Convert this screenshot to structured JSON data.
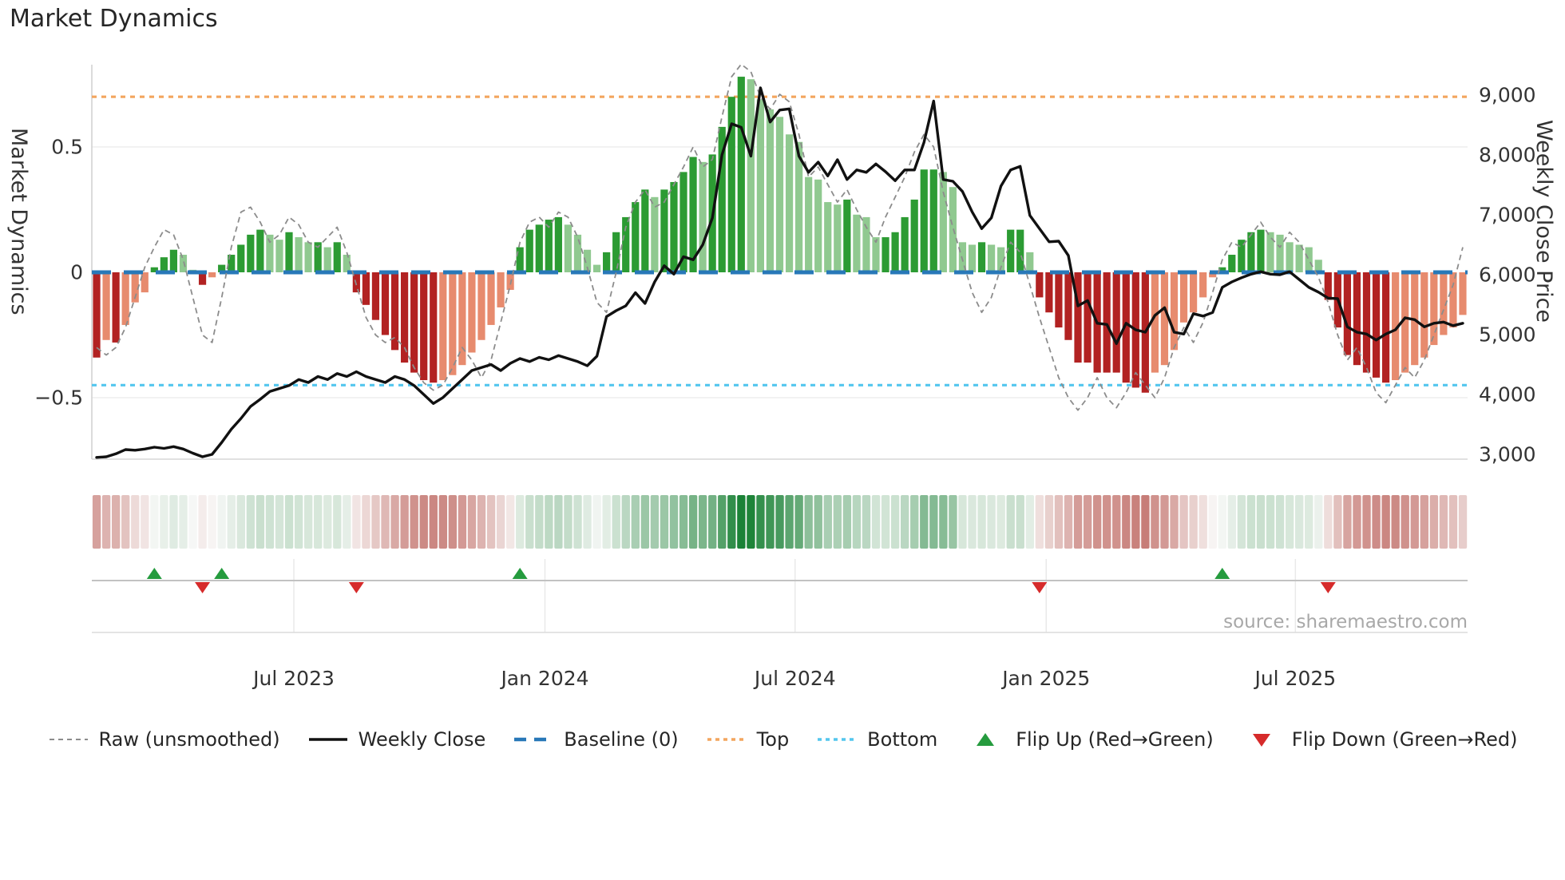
{
  "title": "Market Dynamics",
  "source": "source: sharemaestro.com",
  "left_axis": {
    "label": "Market Dynamics",
    "ticks": [
      "0.5",
      "0",
      "−0.5"
    ],
    "tick_values": [
      0.5,
      0,
      -0.5
    ]
  },
  "right_axis": {
    "label": "Weekly Close Price",
    "ticks": [
      "9,000",
      "8,000",
      "7,000",
      "6,000",
      "5,000",
      "4,000",
      "3,000"
    ],
    "tick_values": [
      9000,
      8000,
      7000,
      6000,
      5000,
      4000,
      3000
    ]
  },
  "x_axis": {
    "ticks": [
      {
        "label": "Jul 2023",
        "week": 20.5
      },
      {
        "label": "Jan 2024",
        "week": 46.6
      },
      {
        "label": "Jul 2024",
        "week": 72.6
      },
      {
        "label": "Jan 2025",
        "week": 98.7
      },
      {
        "label": "Jul 2025",
        "week": 124.6
      }
    ]
  },
  "colors": {
    "bar_pos_dark": "#2c9b33",
    "bar_pos_light": "#90c990",
    "bar_neg_dark": "#b22222",
    "bar_neg_light": "#e78b6e",
    "baseline": "#2878b8",
    "top_line": "#f3a55f",
    "bottom_line": "#53c6ee",
    "raw_line": "#8c8c8c",
    "price_line": "#111111",
    "flip_up": "#259b3e",
    "flip_down": "#d62b2b",
    "heat_red": "#a62a22",
    "heat_green": "#157f32",
    "grid": "#ededed",
    "spine": "#cfcfcf",
    "marker_axis": "#c2c2c2"
  },
  "legend": [
    {
      "id": "raw",
      "label": "Raw (unsmoothed)",
      "swatch": "line",
      "color": "#8c8c8c",
      "dash": "6 5",
      "width": 2
    },
    {
      "id": "weekly-close",
      "label": "Weekly Close",
      "swatch": "line",
      "color": "#111111",
      "dash": "",
      "width": 3.5
    },
    {
      "id": "baseline",
      "label": "Baseline (0)",
      "swatch": "line",
      "color": "#2878b8",
      "dash": "15 10",
      "width": 4.5
    },
    {
      "id": "top",
      "label": "Top",
      "swatch": "line",
      "color": "#f3a55f",
      "dash": "5 5",
      "width": 3.5
    },
    {
      "id": "bottom",
      "label": "Bottom",
      "swatch": "line",
      "color": "#53c6ee",
      "dash": "5 5",
      "width": 3.5
    },
    {
      "id": "flip-up",
      "label": "Flip Up (Red→Green)",
      "swatch": "triangle-up",
      "color": "#259b3e"
    },
    {
      "id": "flip-down",
      "label": "Flip Down (Green→Red)",
      "swatch": "triangle-down",
      "color": "#d62b2b"
    }
  ],
  "chart_data": {
    "type": "combo",
    "title": "Market Dynamics",
    "n_weeks": 143,
    "date_range_note": "weekly, ~Feb 2023 to ~Oct 2025",
    "left_ylabel": "Market Dynamics",
    "right_ylabel": "Weekly Close Price",
    "left_ylim": [
      -0.745,
      0.83
    ],
    "right_ylim": [
      2880,
      9510
    ],
    "reference_lines": {
      "baseline": 0,
      "top": 0.7,
      "bottom": -0.45
    },
    "flip_up_weeks": [
      6,
      13,
      44,
      117
    ],
    "flip_down_weeks": [
      11,
      27,
      98,
      128
    ],
    "series": [
      {
        "name": "Market Dynamics",
        "type": "bar",
        "axis": "left",
        "values": [
          -0.34,
          -0.27,
          -0.28,
          -0.21,
          -0.12,
          -0.08,
          0.02,
          0.06,
          0.09,
          0.07,
          0.01,
          -0.05,
          -0.02,
          0.03,
          0.07,
          0.11,
          0.15,
          0.17,
          0.15,
          0.13,
          0.16,
          0.14,
          0.12,
          0.12,
          0.1,
          0.12,
          0.07,
          -0.08,
          -0.13,
          -0.19,
          -0.25,
          -0.31,
          -0.36,
          -0.4,
          -0.43,
          -0.44,
          -0.43,
          -0.41,
          -0.37,
          -0.32,
          -0.27,
          -0.21,
          -0.14,
          -0.07,
          0.1,
          0.17,
          0.19,
          0.21,
          0.22,
          0.19,
          0.15,
          0.09,
          0.03,
          0.08,
          0.16,
          0.22,
          0.28,
          0.33,
          0.3,
          0.33,
          0.36,
          0.4,
          0.46,
          0.44,
          0.47,
          0.58,
          0.7,
          0.78,
          0.77,
          0.69,
          0.65,
          0.62,
          0.55,
          0.52,
          0.38,
          0.37,
          0.28,
          0.27,
          0.29,
          0.23,
          0.22,
          0.14,
          0.14,
          0.16,
          0.22,
          0.29,
          0.41,
          0.41,
          0.4,
          0.34,
          0.12,
          0.11,
          0.12,
          0.11,
          0.1,
          0.17,
          0.17,
          0.08,
          -0.1,
          -0.16,
          -0.22,
          -0.27,
          -0.36,
          -0.36,
          -0.4,
          -0.4,
          -0.4,
          -0.44,
          -0.46,
          -0.48,
          -0.4,
          -0.37,
          -0.31,
          -0.2,
          -0.16,
          -0.1,
          -0.02,
          0.02,
          0.07,
          0.13,
          0.16,
          0.17,
          0.16,
          0.15,
          0.12,
          0.11,
          0.1,
          0.05,
          -0.11,
          -0.22,
          -0.33,
          -0.37,
          -0.4,
          -0.42,
          -0.44,
          -0.43,
          -0.4,
          -0.37,
          -0.34,
          -0.29,
          -0.25,
          -0.22,
          -0.17
        ]
      },
      {
        "name": "Raw (unsmoothed)",
        "type": "line",
        "axis": "left",
        "values": [
          -0.3,
          -0.33,
          -0.3,
          -0.22,
          -0.1,
          0.02,
          0.1,
          0.17,
          0.15,
          0.05,
          -0.1,
          -0.25,
          -0.28,
          -0.1,
          0.1,
          0.24,
          0.26,
          0.2,
          0.12,
          0.15,
          0.22,
          0.19,
          0.12,
          0.1,
          0.14,
          0.18,
          0.08,
          -0.05,
          -0.18,
          -0.25,
          -0.28,
          -0.26,
          -0.3,
          -0.38,
          -0.44,
          -0.47,
          -0.45,
          -0.38,
          -0.3,
          -0.35,
          -0.42,
          -0.35,
          -0.2,
          -0.05,
          0.12,
          0.2,
          0.22,
          0.18,
          0.24,
          0.22,
          0.14,
          0.02,
          -0.12,
          -0.16,
          0.0,
          0.18,
          0.28,
          0.33,
          0.26,
          0.28,
          0.35,
          0.42,
          0.5,
          0.42,
          0.45,
          0.62,
          0.78,
          0.83,
          0.8,
          0.7,
          0.65,
          0.71,
          0.68,
          0.55,
          0.38,
          0.42,
          0.35,
          0.28,
          0.33,
          0.25,
          0.18,
          0.12,
          0.22,
          0.3,
          0.38,
          0.48,
          0.55,
          0.5,
          0.32,
          0.18,
          0.05,
          -0.08,
          -0.16,
          -0.1,
          0.02,
          0.12,
          0.08,
          -0.05,
          -0.18,
          -0.3,
          -0.42,
          -0.5,
          -0.55,
          -0.5,
          -0.42,
          -0.5,
          -0.54,
          -0.48,
          -0.4,
          -0.45,
          -0.5,
          -0.42,
          -0.3,
          -0.22,
          -0.28,
          -0.2,
          -0.08,
          0.05,
          0.12,
          0.1,
          0.15,
          0.2,
          0.14,
          0.1,
          0.16,
          0.12,
          0.05,
          -0.02,
          -0.12,
          -0.25,
          -0.35,
          -0.3,
          -0.38,
          -0.48,
          -0.52,
          -0.45,
          -0.38,
          -0.42,
          -0.35,
          -0.25,
          -0.15,
          -0.05,
          0.1
        ]
      },
      {
        "name": "Weekly Close",
        "type": "line",
        "axis": "right",
        "values": [
          2950,
          2960,
          3010,
          3080,
          3070,
          3090,
          3120,
          3100,
          3130,
          3090,
          3020,
          2960,
          3000,
          3200,
          3420,
          3600,
          3800,
          3920,
          4050,
          4100,
          4150,
          4250,
          4200,
          4300,
          4250,
          4350,
          4300,
          4380,
          4300,
          4250,
          4200,
          4300,
          4250,
          4150,
          4000,
          3850,
          3950,
          4100,
          4250,
          4400,
          4450,
          4500,
          4400,
          4520,
          4600,
          4550,
          4620,
          4580,
          4650,
          4600,
          4550,
          4480,
          4640,
          5300,
          5400,
          5480,
          5700,
          5520,
          5880,
          6150,
          6010,
          6300,
          6250,
          6500,
          6950,
          8000,
          8520,
          8460,
          7980,
          9120,
          8550,
          8750,
          8770,
          7980,
          7710,
          7880,
          7650,
          7920,
          7590,
          7750,
          7710,
          7850,
          7720,
          7570,
          7750,
          7750,
          8210,
          8900,
          7590,
          7560,
          7390,
          7050,
          6770,
          6950,
          7480,
          7750,
          7810,
          6990,
          6770,
          6550,
          6560,
          6320,
          5480,
          5570,
          5190,
          5170,
          4850,
          5190,
          5080,
          5040,
          5320,
          5450,
          5040,
          5010,
          5350,
          5310,
          5370,
          5790,
          5880,
          5950,
          6010,
          6050,
          6010,
          6000,
          6050,
          5920,
          5790,
          5710,
          5610,
          5600,
          5130,
          5040,
          5010,
          4910,
          5010,
          5080,
          5280,
          5250,
          5130,
          5190,
          5210,
          5150,
          5190
        ]
      }
    ],
    "heatmap": {
      "note": "diverging red-white-green strip of the bar values",
      "scale_abs_max": 0.8
    }
  }
}
